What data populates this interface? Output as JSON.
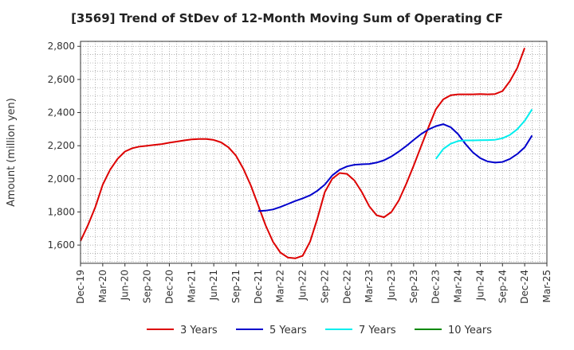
{
  "chart_data": {
    "type": "line",
    "title": "[3569]  Trend of StDev of 12-Month Moving Sum of Operating CF",
    "ylabel": "Amount (million yen)",
    "xlabel": "",
    "ylim": [
      1490,
      2830
    ],
    "yticks": [
      1600,
      1800,
      2000,
      2200,
      2400,
      2600,
      2800
    ],
    "ytick_labels": [
      "1,600",
      "1,800",
      "2,000",
      "2,200",
      "2,400",
      "2,600",
      "2,800"
    ],
    "xticks": [
      "Dec-19",
      "Mar-20",
      "Jun-20",
      "Sep-20",
      "Dec-20",
      "Mar-21",
      "Jun-21",
      "Sep-21",
      "Dec-21",
      "Mar-22",
      "Jun-22",
      "Sep-22",
      "Dec-22",
      "Mar-23",
      "Jun-23",
      "Sep-23",
      "Dec-23",
      "Mar-24",
      "Jun-24",
      "Sep-24",
      "Dec-24",
      "Mar-25"
    ],
    "grid": true,
    "legend_position": "bottom",
    "series": [
      {
        "name": "3 Years",
        "color": "#dd0000",
        "start_month": "Dec-19",
        "values": [
          1625,
          1720,
          1830,
          1965,
          2055,
          2120,
          2165,
          2185,
          2195,
          2200,
          2205,
          2210,
          2218,
          2225,
          2232,
          2238,
          2240,
          2240,
          2235,
          2220,
          2190,
          2140,
          2060,
          1960,
          1840,
          1720,
          1620,
          1555,
          1525,
          1520,
          1535,
          1620,
          1760,
          1920,
          2000,
          2035,
          2030,
          1990,
          1920,
          1835,
          1780,
          1768,
          1800,
          1870,
          1970,
          2080,
          2195,
          2310,
          2420,
          2480,
          2505,
          2510,
          2510,
          2510,
          2512,
          2510,
          2512,
          2530,
          2590,
          2670,
          2790
        ]
      },
      {
        "name": "5 Years",
        "color": "#0000cc",
        "start_month": "Dec-21",
        "values": [
          1805,
          1808,
          1815,
          1830,
          1848,
          1866,
          1882,
          1900,
          1928,
          1965,
          2020,
          2055,
          2075,
          2085,
          2088,
          2090,
          2098,
          2112,
          2135,
          2165,
          2198,
          2235,
          2270,
          2298,
          2318,
          2330,
          2312,
          2270,
          2210,
          2160,
          2125,
          2105,
          2098,
          2102,
          2120,
          2150,
          2190,
          2262
        ]
      },
      {
        "name": "7 Years",
        "color": "#00eeee",
        "start_month": "Dec-23",
        "values": [
          2120,
          2180,
          2212,
          2228,
          2232,
          2232,
          2233,
          2234,
          2236,
          2245,
          2265,
          2300,
          2350,
          2420
        ]
      },
      {
        "name": "10 Years",
        "color": "#008800",
        "start_month": "Dec-24",
        "values": []
      }
    ]
  }
}
